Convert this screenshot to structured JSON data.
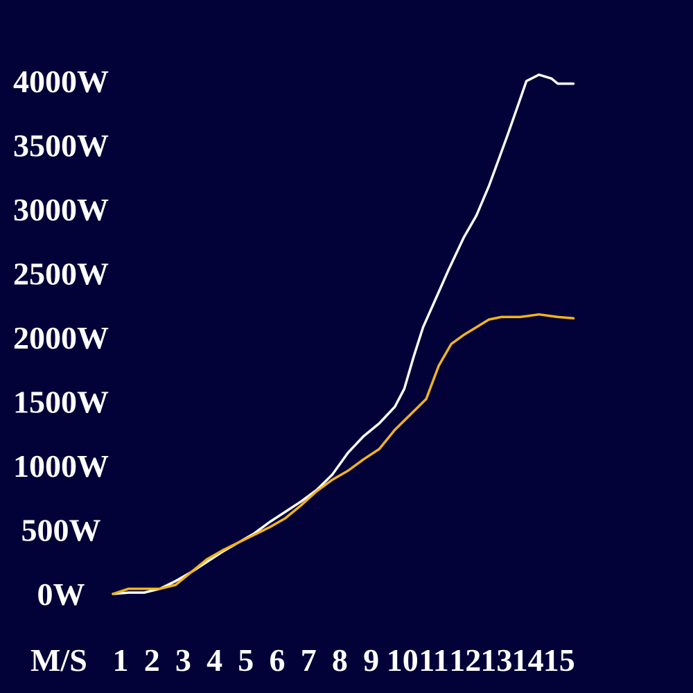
{
  "chart_data": {
    "type": "line",
    "title": "",
    "xlabel": "",
    "ylabel": "",
    "x_unit_label": "M/S",
    "x_ticks": [
      1,
      2,
      3,
      4,
      5,
      6,
      7,
      8,
      9,
      10,
      11,
      12,
      13,
      14,
      15
    ],
    "y_ticks": [
      "0W",
      "500W",
      "1000W",
      "1500W",
      "2000W",
      "2500W",
      "3000W",
      "3500W",
      "4000W"
    ],
    "y_tick_values": [
      0,
      500,
      1000,
      1500,
      2000,
      2500,
      3000,
      3500,
      4000
    ],
    "xlim": [
      1,
      15.7
    ],
    "ylim": [
      0,
      4000
    ],
    "grid": false,
    "legend": "none",
    "background_color": "#020238",
    "series": [
      {
        "color": "#ffffff",
        "points": [
          [
            1,
            0
          ],
          [
            1.5,
            10
          ],
          [
            2,
            10
          ],
          [
            2.5,
            40
          ],
          [
            3,
            100
          ],
          [
            3.5,
            170
          ],
          [
            4,
            250
          ],
          [
            4.5,
            330
          ],
          [
            5,
            400
          ],
          [
            5.5,
            470
          ],
          [
            6,
            560
          ],
          [
            6.5,
            640
          ],
          [
            7,
            720
          ],
          [
            7.5,
            810
          ],
          [
            8,
            930
          ],
          [
            8.5,
            1100
          ],
          [
            9,
            1230
          ],
          [
            9.5,
            1330
          ],
          [
            10,
            1460
          ],
          [
            10.3,
            1600
          ],
          [
            10.6,
            1850
          ],
          [
            10.9,
            2080
          ],
          [
            11.3,
            2300
          ],
          [
            11.7,
            2520
          ],
          [
            12.2,
            2780
          ],
          [
            12.6,
            2950
          ],
          [
            13,
            3180
          ],
          [
            13.3,
            3380
          ],
          [
            13.6,
            3580
          ],
          [
            13.9,
            3790
          ],
          [
            14.2,
            4000
          ],
          [
            14.6,
            4050
          ],
          [
            15,
            4020
          ],
          [
            15.2,
            3980
          ],
          [
            15.7,
            3980
          ]
        ]
      },
      {
        "color": "#f2b418",
        "points": [
          [
            1,
            0
          ],
          [
            1.5,
            40
          ],
          [
            2,
            40
          ],
          [
            2.5,
            40
          ],
          [
            3,
            70
          ],
          [
            3.5,
            170
          ],
          [
            4,
            270
          ],
          [
            4.5,
            340
          ],
          [
            5,
            400
          ],
          [
            5.5,
            460
          ],
          [
            6,
            520
          ],
          [
            6.5,
            590
          ],
          [
            7,
            690
          ],
          [
            7.5,
            800
          ],
          [
            8,
            890
          ],
          [
            8.5,
            960
          ],
          [
            9,
            1050
          ],
          [
            9.5,
            1130
          ],
          [
            10,
            1280
          ],
          [
            10.5,
            1400
          ],
          [
            11,
            1520
          ],
          [
            11.4,
            1780
          ],
          [
            11.8,
            1950
          ],
          [
            12.2,
            2020
          ],
          [
            12.6,
            2080
          ],
          [
            13,
            2140
          ],
          [
            13.4,
            2160
          ],
          [
            14,
            2160
          ],
          [
            14.6,
            2180
          ],
          [
            15.2,
            2160
          ],
          [
            15.7,
            2150
          ]
        ]
      }
    ]
  }
}
